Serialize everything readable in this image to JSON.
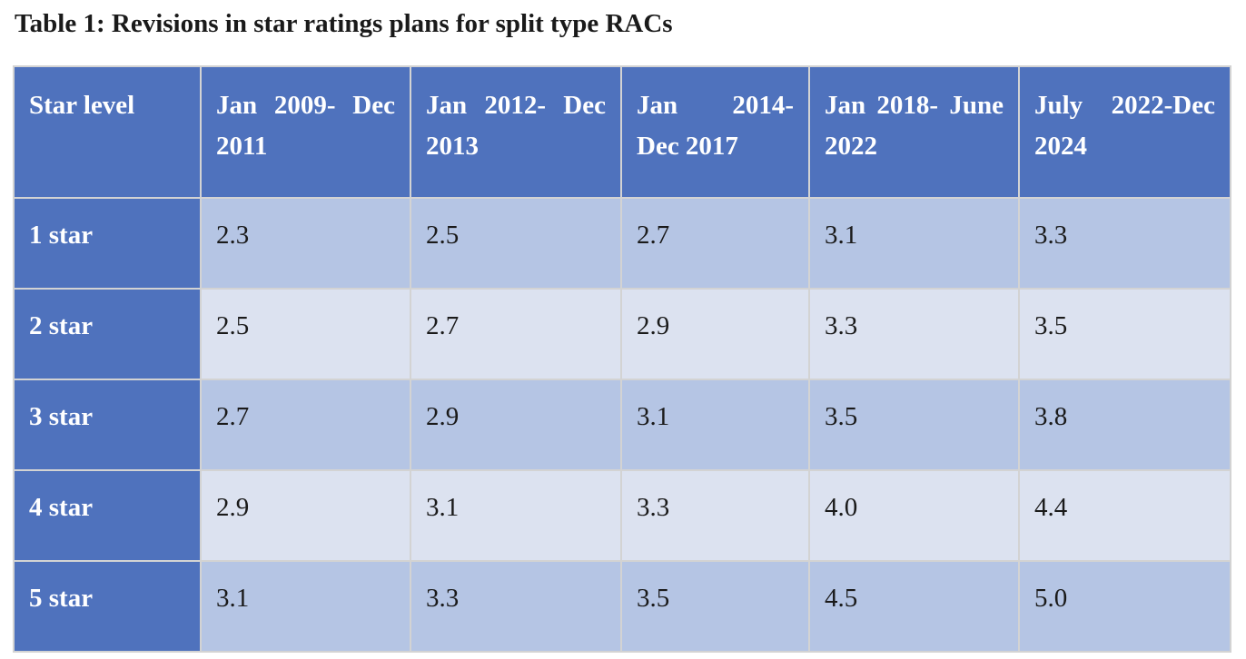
{
  "caption": "Table 1: Revisions in star ratings plans for split type RACs",
  "table": {
    "headers": [
      "Star level",
      "Jan 2009- Dec 2011",
      "Jan 2012- Dec 2013",
      "Jan 2014- Dec 2017",
      "Jan 2018- June 2022",
      "July 2022-Dec 2024"
    ],
    "rows": [
      {
        "level": "1 star",
        "values": [
          "2.3",
          "2.5",
          "2.7",
          "3.1",
          "3.3"
        ]
      },
      {
        "level": "2 star",
        "values": [
          "2.5",
          "2.7",
          "2.9",
          "3.3",
          "3.5"
        ]
      },
      {
        "level": "3 star",
        "values": [
          "2.7",
          "2.9",
          "3.1",
          "3.5",
          "3.8"
        ]
      },
      {
        "level": "4 star",
        "values": [
          "2.9",
          "3.1",
          "3.3",
          "4.0",
          "4.4"
        ]
      },
      {
        "level": "5 star",
        "values": [
          "3.1",
          "3.3",
          "3.5",
          "4.5",
          "5.0"
        ]
      }
    ]
  },
  "colors": {
    "header_bg": "#4f72bd",
    "header_text": "#ffffff",
    "row_band_dark": "#b5c5e4",
    "row_band_light": "#dce2f0",
    "grid_line": "#d3d3d3"
  }
}
